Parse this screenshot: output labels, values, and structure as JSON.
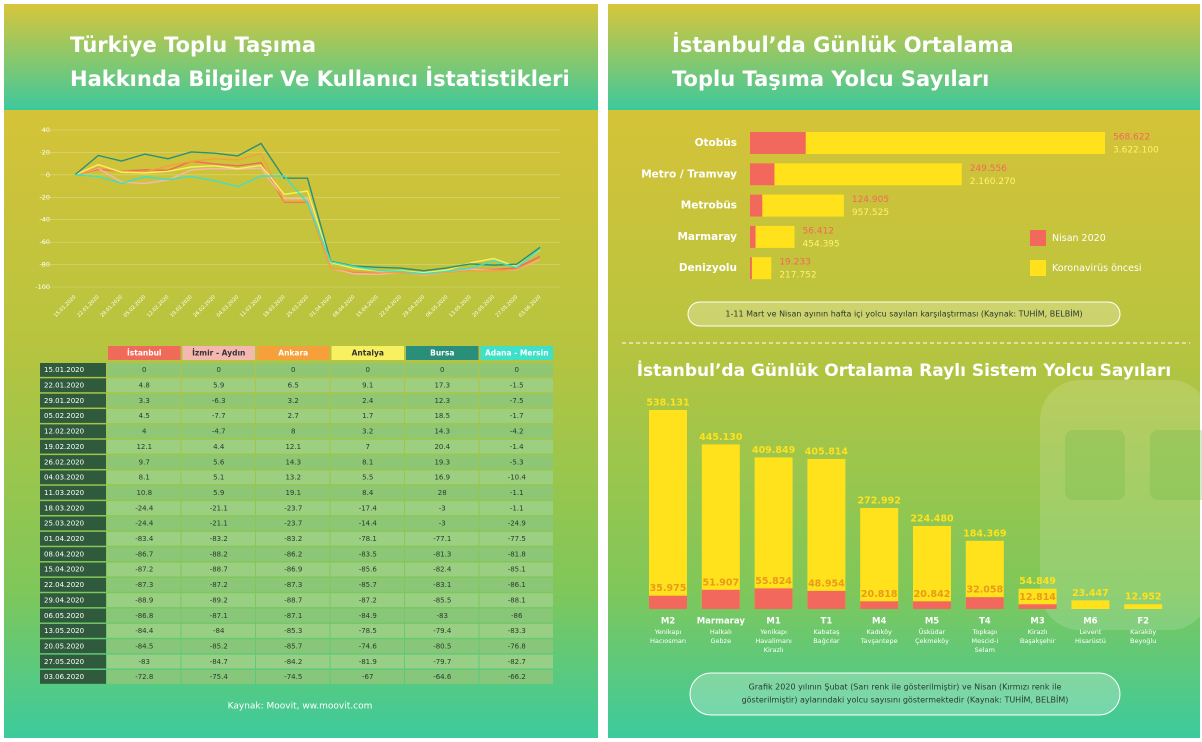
{
  "left": {
    "title": [
      "Türkiye Toplu Taşıma",
      "Hakkında Bilgiler Ve Kullanıcı İstatistikleri"
    ],
    "source": "Kaynak: Moovit, ww.moovit.com"
  },
  "right": {
    "title": [
      "İstanbul’da Günlük Ortalama",
      "Toplu Taşıma Yolcu Sayıları"
    ],
    "note": "1-11 Mart ve Nisan ayının hafta içi yolcu sayıları karşılaştırması (Kaynak: TUHİM, BELBİM)",
    "title2": "İstanbul’da Günlük Ortalama Raylı Sistem Yolcu Sayıları",
    "note2": [
      "Grafik 2020 yılının Şubat (Sarı renk ile gösterilmiştir) ve Nisan (Kırmızı renk ile",
      "gösterilmiştir)  aylarındaki yolcu sayısını göstermektedir (Kaynak: TUHİM, BELBİM)"
    ]
  },
  "chart_data": [
    {
      "type": "line",
      "x": [
        "15.01.2020",
        "22.01.2020",
        "29.01.2020",
        "05.02.2020",
        "12.02.2020",
        "19.02.2020",
        "26.02.2020",
        "04.03.2020",
        "11.03.2020",
        "18.03.2020",
        "25.03.2020",
        "01.04.2020",
        "08.04.2020",
        "15.04.2020",
        "22.04.2020",
        "29.04.2020",
        "06.05.2020",
        "13.05.2020",
        "20.05.2020",
        "27.05.2020",
        "03.06.2020"
      ],
      "ylim": [
        -100,
        40
      ],
      "yticks": [
        40,
        20,
        0,
        -20,
        -40,
        -60,
        -80,
        -100
      ],
      "grid": true,
      "series": [
        {
          "name": "İstanbul",
          "color": "#f06a5a",
          "values": [
            0,
            4.8,
            3.3,
            4.5,
            4,
            12.1,
            9.7,
            8.1,
            10.8,
            -24.4,
            -24.4,
            -83.4,
            -86.7,
            -87.2,
            -87.3,
            -88.9,
            -86.8,
            -84.4,
            -84.5,
            -83,
            -72.8
          ]
        },
        {
          "name": "İzmir - Aydın",
          "color": "#f5b8b0",
          "values": [
            0,
            5.9,
            -6.3,
            -7.7,
            -4.7,
            4.4,
            5.6,
            5.1,
            5.9,
            -21.1,
            -21.1,
            -83.2,
            -88.2,
            -88.7,
            -87.2,
            -89.2,
            -87.1,
            -84,
            -85.2,
            -84.7,
            -75.4
          ]
        },
        {
          "name": "Ankara",
          "color": "#f5a03a",
          "values": [
            0,
            6.5,
            3.2,
            2.7,
            8,
            12.1,
            14.3,
            13.2,
            19.1,
            -23.7,
            -23.7,
            -83.2,
            -86.2,
            -86.9,
            -87.3,
            -88.7,
            -87.1,
            -85.3,
            -85.7,
            -84.2,
            -74.5
          ]
        },
        {
          "name": "Antalya",
          "color": "#f7f060",
          "values": [
            0,
            9.1,
            2.4,
            1.7,
            3.2,
            7,
            8.1,
            5.5,
            8.4,
            -17.4,
            -14.4,
            -78.1,
            -83.5,
            -85.6,
            -85.7,
            -87.2,
            -84.9,
            -78.5,
            -74.6,
            -81.9,
            -67
          ]
        },
        {
          "name": "Bursa",
          "color": "#2a8f7a",
          "values": [
            0,
            17.3,
            12.3,
            18.5,
            14.3,
            20.4,
            19.3,
            16.9,
            28,
            -3,
            -3,
            -77.1,
            -81.3,
            -82.4,
            -83.1,
            -85.5,
            -83,
            -79.4,
            -80.5,
            -79.7,
            -64.6
          ]
        },
        {
          "name": "Adana - Mersin",
          "color": "#3de0c8",
          "values": [
            0,
            -1.5,
            -7.5,
            -1.7,
            -4.2,
            -1.4,
            -5.3,
            -10.4,
            -1.1,
            -1.1,
            -24.9,
            -77.5,
            -81.8,
            -85.1,
            -86.1,
            -88.1,
            -86,
            -83.3,
            -76.8,
            -82.7,
            -66.2
          ]
        }
      ]
    },
    {
      "type": "hbar",
      "categories": [
        "Otobüs",
        "Metro / Tramvay",
        "Metrobüs",
        "Marmaray",
        "Denizyolu"
      ],
      "series": [
        {
          "name": "Koronavirüs öncesi",
          "color": "#ffe21c",
          "values": [
            3622100,
            2160270,
            957525,
            454395,
            217752
          ],
          "value_labels": [
            "3.622.100",
            "2.160.270",
            "957.525",
            "454.395",
            "217.752"
          ]
        },
        {
          "name": "Nisan 2020",
          "color": "#f3685c",
          "values": [
            568622,
            249556,
            124905,
            56412,
            19233
          ],
          "value_labels": [
            "568.622",
            "249.556",
            "124.905",
            "56.412",
            "19.233"
          ]
        }
      ]
    },
    {
      "type": "vbar",
      "categories": [
        "M2",
        "Marmaray",
        "M1",
        "T1",
        "M4",
        "M5",
        "T4",
        "M3",
        "M6",
        "F2"
      ],
      "category_notes": [
        [
          "Yenikapı",
          "Hacıosman"
        ],
        [
          "Halkalı",
          "Gebze"
        ],
        [
          "Yenikapı",
          "Havalimanı",
          "Kirazlı"
        ],
        [
          "Kabataş",
          "Bağcılar"
        ],
        [
          "Kadıköy",
          "Tavşantepe"
        ],
        [
          "Üsküdar",
          "Çekmeköy"
        ],
        [
          "Topkapı",
          "Mescid-i",
          "Selam"
        ],
        [
          "Kirazlı",
          "Başakşehir"
        ],
        [
          "Levent",
          "Hisarüstü"
        ],
        [
          "Karaköy",
          "Beyoğlu"
        ]
      ],
      "series": [
        {
          "color": "#ffe21c",
          "values": [
            538131,
            445130,
            409849,
            405814,
            272992,
            224480,
            184369,
            54849,
            23447,
            12952
          ],
          "value_labels": [
            "538.131",
            "445.130",
            "409.849",
            "405.814",
            "272.992",
            "224.480",
            "184.369",
            "54.849",
            "23.447",
            "12.952"
          ]
        },
        {
          "color": "#f3685c",
          "values": [
            35975,
            51907,
            55824,
            48954,
            20818,
            20842,
            32058,
            12814,
            null,
            null
          ],
          "value_labels": [
            "35.975",
            "51.907",
            "55.824",
            "48.954",
            "20.818",
            "20.842",
            "32.058",
            "12.814",
            null,
            null
          ]
        }
      ]
    }
  ]
}
